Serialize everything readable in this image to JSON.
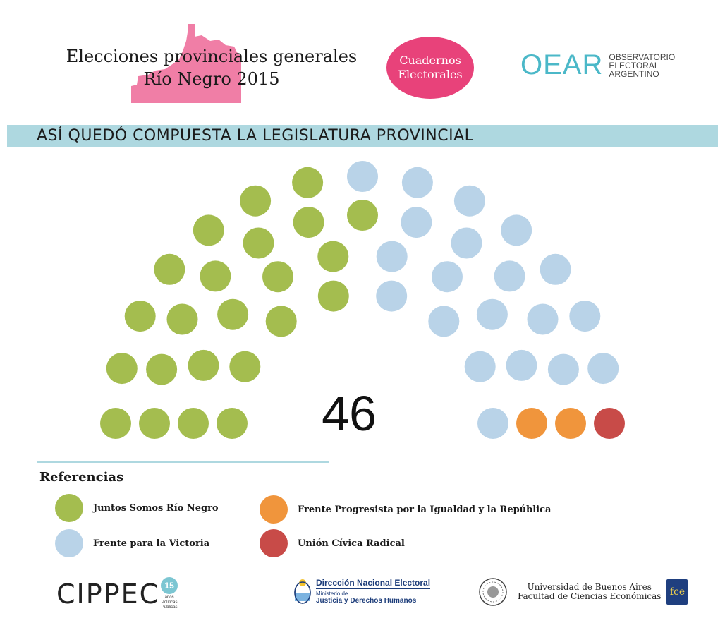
{
  "header": {
    "title_line1": "Elecciones provinciales generales",
    "title_line2": "Río Negro 2015",
    "series_line1": "Cuadernos",
    "series_line2": "Electorales",
    "oear_mark": "OEAR",
    "oear_line1": "Observatorio",
    "oear_line2": "Electoral",
    "oear_line3": "Argentino"
  },
  "banner": {
    "text": "ASÍ QUEDÓ COMPUESTA LA LEGISLATURA PROVINCIAL"
  },
  "colors": {
    "juntos": "#a4bd4f",
    "fpv": "#b9d3e8",
    "progresista": "#f0953c",
    "ucr": "#c84b48",
    "province_shape": "#f07ea6",
    "banner": "#aed8e0",
    "series_badge": "#e8427a"
  },
  "chart_data": {
    "type": "parliament",
    "title": "ASÍ QUEDÓ COMPUESTA LA LEGISLATURA PROVINCIAL",
    "total_seats": 46,
    "total_label": "46",
    "legend_title": "Referencias",
    "series": [
      {
        "name": "Juntos Somos Río Negro",
        "seats": 23,
        "color": "#a4bd4f"
      },
      {
        "name": "Frente para la Victoria",
        "seats": 20,
        "color": "#b9d3e8"
      },
      {
        "name": "Frente Progresista por la Igualdad y la República",
        "seats": 2,
        "color": "#f0953c"
      },
      {
        "name": "Unión Cívica Radical",
        "seats": 1,
        "color": "#c84b48"
      }
    ]
  },
  "footer": {
    "cippec_word": "CIPPEC",
    "cippec_years": "15",
    "cippec_years_label": "años",
    "cippec_sub1": "Políticas",
    "cippec_sub2": "Públicas",
    "dne_main": "Dirección Nacional Electoral",
    "dne_sub1": "Ministerio de",
    "dne_sub2": "Justicia y Derechos Humanos",
    "uba_line1": "Universidad de Buenos Aires",
    "uba_line2": "Facultad de Ciencias Económicas",
    "fce": "fce"
  }
}
